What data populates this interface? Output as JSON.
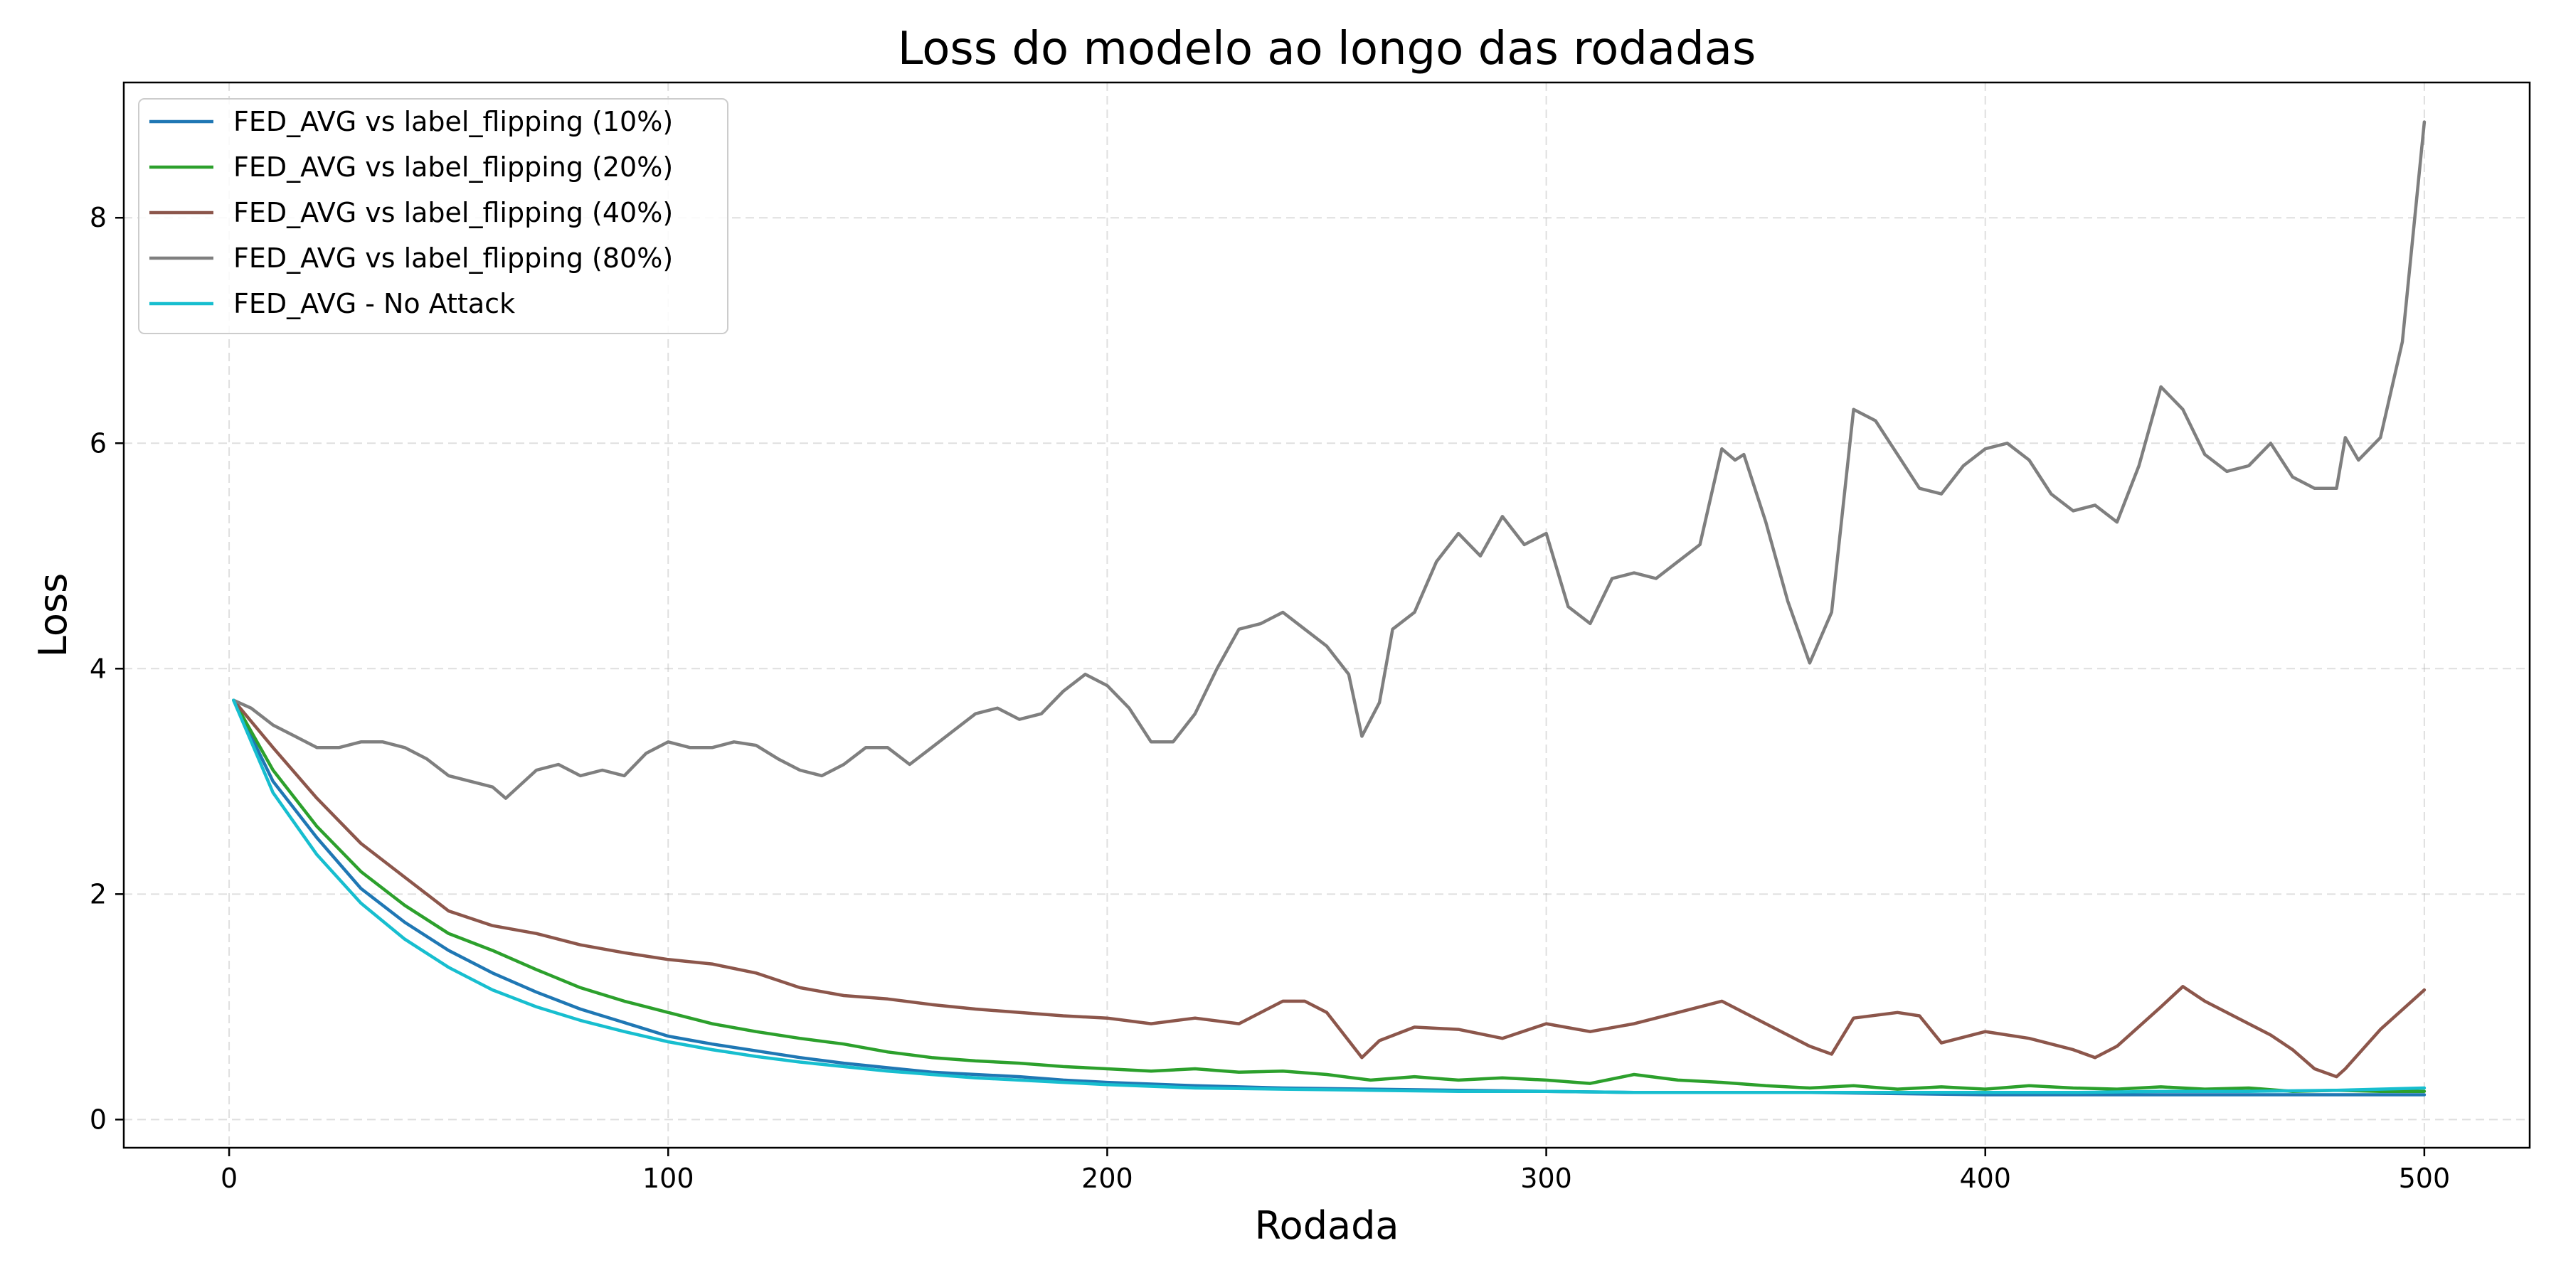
{
  "chart_data": {
    "type": "line",
    "title": "Loss do modelo ao longo das rodadas",
    "xlabel": "Rodada",
    "ylabel": "Loss",
    "xlim": [
      -24,
      524
    ],
    "ylim": [
      -0.25,
      9.2
    ],
    "xticks": [
      0,
      100,
      200,
      300,
      400,
      500
    ],
    "yticks": [
      0,
      2,
      4,
      6,
      8
    ],
    "grid": true,
    "legend_position": "top-left",
    "series": [
      {
        "name": "FED_AVG vs label_flipping (10%)",
        "color": "#1f77b4",
        "x": [
          1,
          10,
          20,
          30,
          40,
          50,
          60,
          70,
          80,
          90,
          100,
          110,
          120,
          130,
          140,
          150,
          160,
          170,
          180,
          190,
          200,
          220,
          240,
          260,
          280,
          300,
          320,
          340,
          360,
          380,
          400,
          420,
          440,
          460,
          480,
          500
        ],
        "y": [
          3.72,
          3.0,
          2.5,
          2.05,
          1.75,
          1.5,
          1.3,
          1.13,
          0.98,
          0.86,
          0.74,
          0.67,
          0.61,
          0.55,
          0.5,
          0.46,
          0.42,
          0.4,
          0.38,
          0.35,
          0.33,
          0.3,
          0.28,
          0.27,
          0.26,
          0.25,
          0.24,
          0.24,
          0.24,
          0.23,
          0.22,
          0.22,
          0.22,
          0.22,
          0.22,
          0.22
        ]
      },
      {
        "name": "FED_AVG vs label_flipping (20%)",
        "color": "#2ca02c",
        "x": [
          1,
          10,
          20,
          30,
          40,
          50,
          60,
          70,
          80,
          90,
          100,
          110,
          120,
          130,
          140,
          150,
          160,
          170,
          180,
          190,
          200,
          210,
          220,
          230,
          240,
          250,
          260,
          270,
          280,
          290,
          300,
          310,
          320,
          330,
          340,
          350,
          360,
          370,
          380,
          390,
          400,
          410,
          420,
          430,
          440,
          450,
          460,
          470,
          480,
          490,
          500
        ],
        "y": [
          3.72,
          3.1,
          2.6,
          2.2,
          1.9,
          1.65,
          1.5,
          1.33,
          1.17,
          1.05,
          0.95,
          0.85,
          0.78,
          0.72,
          0.67,
          0.6,
          0.55,
          0.52,
          0.5,
          0.47,
          0.45,
          0.43,
          0.45,
          0.42,
          0.43,
          0.4,
          0.35,
          0.38,
          0.35,
          0.37,
          0.35,
          0.32,
          0.4,
          0.35,
          0.33,
          0.3,
          0.28,
          0.3,
          0.27,
          0.29,
          0.27,
          0.3,
          0.28,
          0.27,
          0.29,
          0.27,
          0.28,
          0.25,
          0.26,
          0.25,
          0.25
        ]
      },
      {
        "name": "FED_AVG vs label_flipping (40%)",
        "color": "#8c564b",
        "x": [
          1,
          10,
          20,
          30,
          40,
          50,
          60,
          70,
          80,
          90,
          100,
          110,
          120,
          130,
          140,
          150,
          160,
          170,
          180,
          190,
          200,
          210,
          220,
          230,
          240,
          245,
          250,
          258,
          262,
          270,
          280,
          290,
          300,
          310,
          320,
          330,
          340,
          350,
          360,
          365,
          370,
          380,
          385,
          390,
          400,
          410,
          420,
          425,
          430,
          440,
          445,
          450,
          460,
          465,
          470,
          475,
          480,
          482,
          490,
          500
        ],
        "y": [
          3.72,
          3.3,
          2.85,
          2.45,
          2.15,
          1.85,
          1.72,
          1.65,
          1.55,
          1.48,
          1.42,
          1.38,
          1.3,
          1.17,
          1.1,
          1.07,
          1.02,
          0.98,
          0.95,
          0.92,
          0.9,
          0.85,
          0.9,
          0.85,
          1.05,
          1.05,
          0.95,
          0.55,
          0.7,
          0.82,
          0.8,
          0.72,
          0.85,
          0.78,
          0.85,
          0.95,
          1.05,
          0.85,
          0.65,
          0.58,
          0.9,
          0.95,
          0.92,
          0.68,
          0.78,
          0.72,
          0.62,
          0.55,
          0.65,
          1.0,
          1.18,
          1.05,
          0.85,
          0.75,
          0.62,
          0.45,
          0.38,
          0.45,
          0.8,
          1.15
        ]
      },
      {
        "name": "FED_AVG vs label_flipping (80%)",
        "color": "#7f7f7f",
        "x": [
          1,
          5,
          10,
          15,
          20,
          25,
          30,
          35,
          40,
          45,
          50,
          55,
          60,
          63,
          70,
          75,
          80,
          85,
          90,
          95,
          100,
          105,
          110,
          115,
          120,
          125,
          130,
          135,
          140,
          145,
          150,
          155,
          160,
          165,
          170,
          175,
          180,
          185,
          190,
          195,
          200,
          205,
          210,
          215,
          220,
          225,
          230,
          235,
          240,
          245,
          250,
          255,
          258,
          262,
          265,
          270,
          275,
          280,
          285,
          290,
          295,
          300,
          305,
          310,
          315,
          320,
          325,
          330,
          335,
          340,
          343,
          345,
          350,
          355,
          360,
          365,
          370,
          375,
          380,
          385,
          390,
          395,
          400,
          405,
          410,
          415,
          420,
          425,
          430,
          435,
          440,
          445,
          450,
          455,
          460,
          465,
          470,
          475,
          480,
          482,
          485,
          490,
          495,
          500
        ],
        "y": [
          3.72,
          3.65,
          3.5,
          3.4,
          3.3,
          3.3,
          3.35,
          3.35,
          3.3,
          3.2,
          3.05,
          3.0,
          2.95,
          2.85,
          3.1,
          3.15,
          3.05,
          3.1,
          3.05,
          3.25,
          3.35,
          3.3,
          3.3,
          3.35,
          3.32,
          3.2,
          3.1,
          3.05,
          3.15,
          3.3,
          3.3,
          3.15,
          3.3,
          3.45,
          3.6,
          3.65,
          3.55,
          3.6,
          3.8,
          3.95,
          3.85,
          3.65,
          3.35,
          3.35,
          3.6,
          4.0,
          4.35,
          4.4,
          4.5,
          4.35,
          4.2,
          3.95,
          3.4,
          3.7,
          4.35,
          4.5,
          4.95,
          5.2,
          5.0,
          5.35,
          5.1,
          5.2,
          4.55,
          4.4,
          4.8,
          4.85,
          4.8,
          4.95,
          5.1,
          5.95,
          5.85,
          5.9,
          5.3,
          4.6,
          4.05,
          4.5,
          6.3,
          6.2,
          5.9,
          5.6,
          5.55,
          5.8,
          5.95,
          6.0,
          5.85,
          5.55,
          5.4,
          5.45,
          5.3,
          5.8,
          6.5,
          6.3,
          5.9,
          5.75,
          5.8,
          6.0,
          5.7,
          5.6,
          5.6,
          6.05,
          5.85,
          6.05,
          6.9,
          8.85
        ]
      },
      {
        "name": "FED_AVG - No Attack",
        "color": "#17becf",
        "x": [
          1,
          10,
          20,
          30,
          40,
          50,
          60,
          70,
          80,
          90,
          100,
          110,
          120,
          130,
          140,
          150,
          160,
          170,
          180,
          190,
          200,
          220,
          240,
          260,
          280,
          300,
          320,
          340,
          360,
          380,
          400,
          420,
          440,
          460,
          480,
          500
        ],
        "y": [
          3.72,
          2.9,
          2.35,
          1.92,
          1.6,
          1.35,
          1.15,
          1.0,
          0.88,
          0.78,
          0.69,
          0.62,
          0.56,
          0.51,
          0.47,
          0.43,
          0.4,
          0.37,
          0.35,
          0.33,
          0.31,
          0.28,
          0.27,
          0.26,
          0.25,
          0.25,
          0.24,
          0.24,
          0.24,
          0.24,
          0.24,
          0.24,
          0.25,
          0.25,
          0.26,
          0.28
        ]
      }
    ]
  }
}
